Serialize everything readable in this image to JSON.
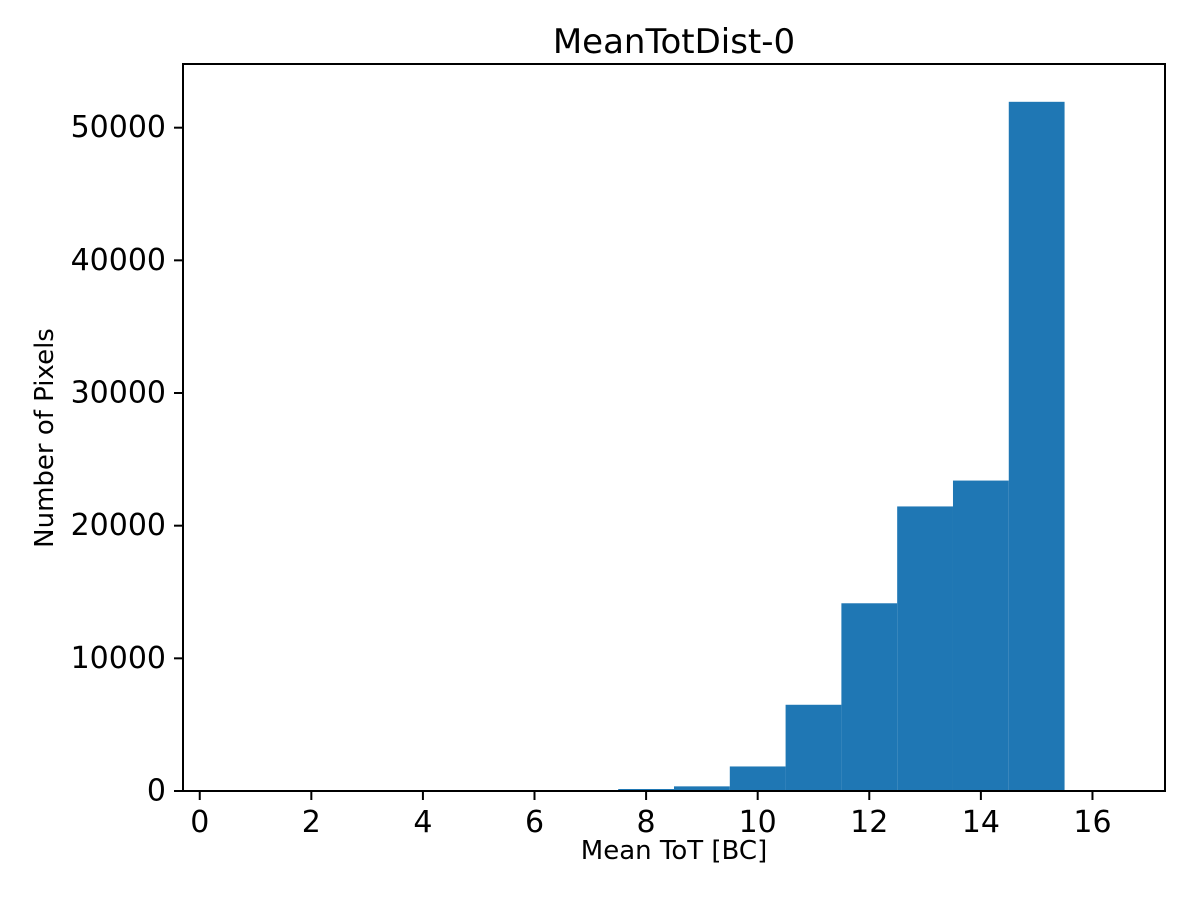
{
  "figure": {
    "background": "#ffffff"
  },
  "chart_data": {
    "type": "bar",
    "title": "MeanTotDist-0",
    "xlabel": "Mean ToT [BC]",
    "ylabel": "Number of Pixels",
    "bar_color": "#1f77b4",
    "grid": false,
    "legend": null,
    "xlim": [
      -0.3,
      17.3
    ],
    "ylim": [
      0,
      54800
    ],
    "bin_width": 1,
    "bin_centers": [
      1,
      2,
      3,
      4,
      5,
      6,
      7,
      8,
      9,
      10,
      11,
      12,
      13,
      14,
      15,
      16
    ],
    "counts": [
      0,
      0,
      0,
      0,
      0,
      0,
      0,
      150,
      350,
      1850,
      6500,
      14150,
      21450,
      23400,
      51950,
      0
    ],
    "xticks": [
      0,
      2,
      4,
      6,
      8,
      10,
      12,
      14,
      16
    ],
    "xtick_labels": [
      "0",
      "2",
      "4",
      "6",
      "8",
      "10",
      "12",
      "14",
      "16"
    ],
    "yticks": [
      0,
      10000,
      20000,
      30000,
      40000,
      50000
    ],
    "ytick_labels": [
      "0",
      "10000",
      "20000",
      "30000",
      "40000",
      "50000"
    ]
  }
}
